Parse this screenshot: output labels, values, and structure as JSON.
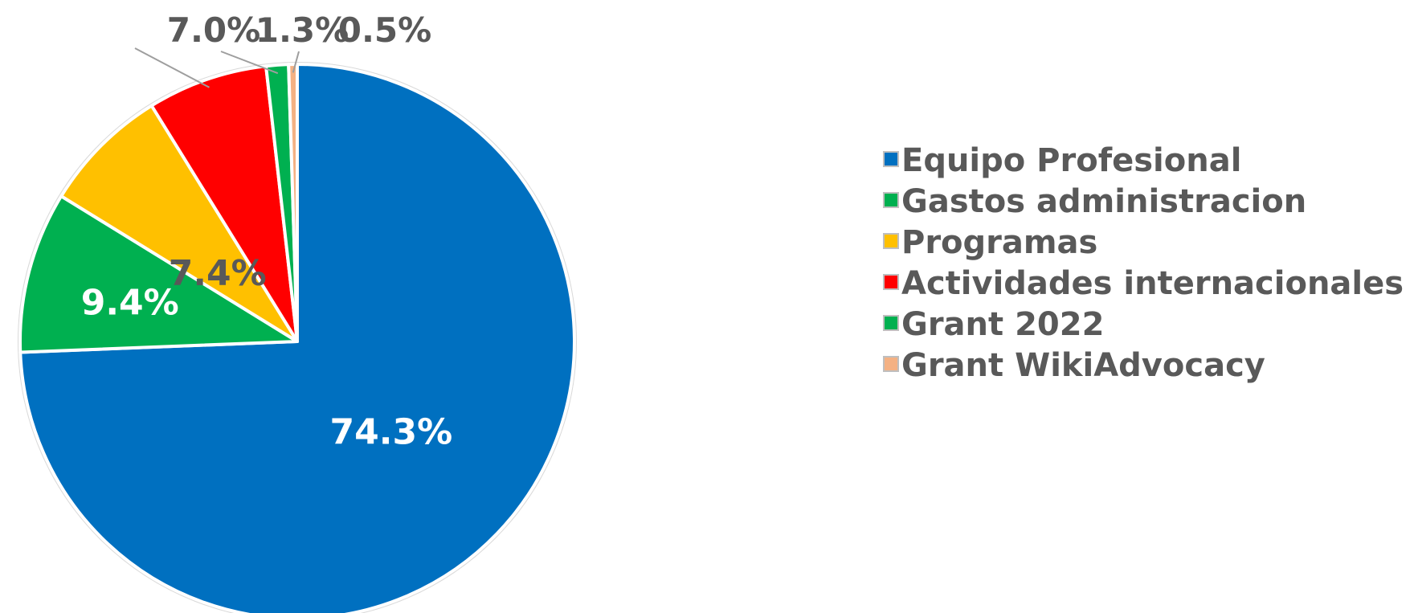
{
  "chart_data": {
    "type": "pie",
    "title": "",
    "legend_position": "right",
    "slices": [
      {
        "name": "Equipo Profesional",
        "value": 74.3,
        "label": "74.3%",
        "color": "#0070C0",
        "label_color": "#ffffff",
        "label_placement": "inside"
      },
      {
        "name": "Gastos administracion",
        "value": 9.4,
        "label": "9.4%",
        "color": "#00B050",
        "label_color": "#ffffff",
        "label_placement": "inside"
      },
      {
        "name": "Programas",
        "value": 7.4,
        "label": "7.4%",
        "color": "#FFC000",
        "label_color": "#595959",
        "label_placement": "inside"
      },
      {
        "name": "Actividades internacionales",
        "value": 7.0,
        "label": "7.0%",
        "color": "#FF0000",
        "label_color": "#595959",
        "label_placement": "outside"
      },
      {
        "name": "Grant 2022",
        "value": 1.3,
        "label": "1.3%",
        "color": "#00B050",
        "label_color": "#595959",
        "label_placement": "outside"
      },
      {
        "name": "Grant WikiAdvocacy",
        "value": 0.5,
        "label": "0.5%",
        "color": "#F4B183",
        "label_color": "#595959",
        "label_placement": "outside"
      }
    ]
  }
}
